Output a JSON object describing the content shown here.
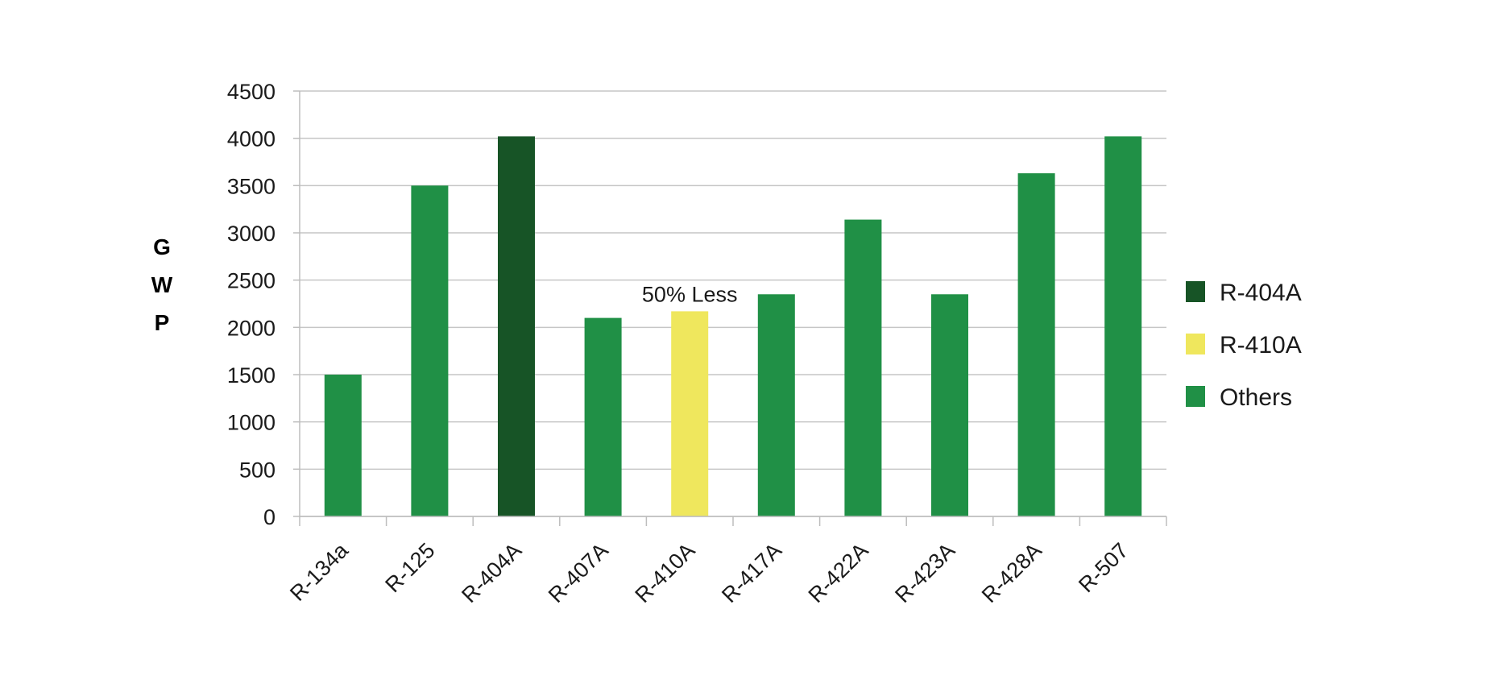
{
  "chart_data": {
    "type": "bar",
    "ylabel": "GWP",
    "ylim": [
      0,
      4500
    ],
    "yticks": [
      0,
      500,
      1000,
      1500,
      2000,
      2500,
      3000,
      3500,
      4000,
      4500
    ],
    "grid": true,
    "categories": [
      "R-134a",
      "R-125",
      "R-404A",
      "R-407A",
      "R-410A",
      "R-417A",
      "R-422A",
      "R-423A",
      "R-428A",
      "R-507"
    ],
    "values": [
      1500,
      3500,
      4020,
      2100,
      2170,
      2350,
      3140,
      2350,
      3630,
      4020
    ],
    "groups": [
      "Others",
      "Others",
      "R-404A",
      "Others",
      "R-410A",
      "Others",
      "Others",
      "Others",
      "Others",
      "Others"
    ],
    "annotation": {
      "text": "50% Less",
      "category": "R-410A"
    },
    "legend": {
      "position": "right",
      "items": [
        {
          "label": "R-404A",
          "color": "#175426"
        },
        {
          "label": "R-410A",
          "color": "#efe75d"
        },
        {
          "label": "Others",
          "color": "#209046"
        }
      ]
    }
  }
}
